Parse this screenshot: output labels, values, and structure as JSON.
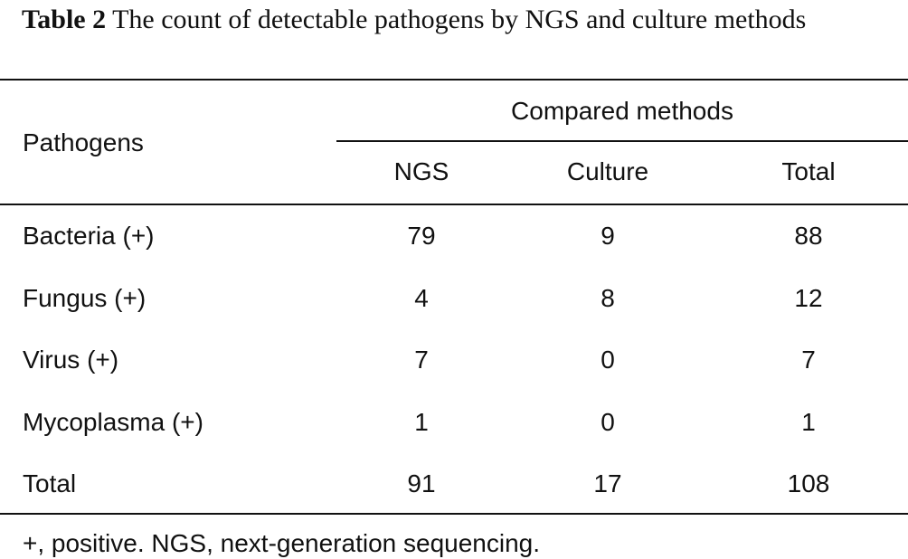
{
  "caption": {
    "label": "Table 2",
    "text": "The count of detectable pathogens by NGS and culture methods"
  },
  "table": {
    "row_header": "Pathogens",
    "group_header": "Compared methods",
    "columns": [
      "NGS",
      "Culture",
      "Total"
    ],
    "rows": [
      [
        "Bacteria (+)",
        79,
        9,
        88
      ],
      [
        "Fungus (+)",
        4,
        8,
        12
      ],
      [
        "Virus (+)",
        7,
        0,
        7
      ],
      [
        "Mycoplasma (+)",
        1,
        0,
        1
      ],
      [
        "Total",
        91,
        17,
        108
      ]
    ]
  },
  "footnote": "+, positive. NGS, next-generation sequencing."
}
